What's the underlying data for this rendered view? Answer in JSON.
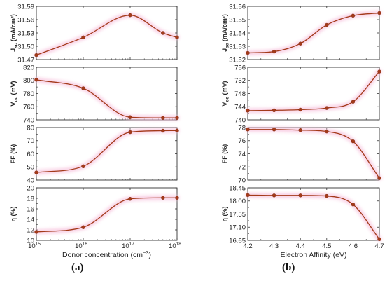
{
  "colors": {
    "line": "#a33a1a",
    "marker": "#a33a1a",
    "glow": "#f7c2dd",
    "axis": "#333333"
  },
  "panel_labels": {
    "a": "(a)",
    "b": "(b)"
  },
  "chart_data": [
    {
      "id": "a-jsc",
      "type": "line",
      "xscale": "log",
      "x": [
        1000000000000000.0,
        1e+16,
        1e+17,
        5e+17,
        1e+18
      ],
      "y": [
        31.48,
        31.52,
        31.57,
        31.53,
        31.52
      ],
      "ylim": [
        31.47,
        31.59
      ],
      "yticks": [
        31.47,
        31.5,
        31.53,
        31.56,
        31.59
      ],
      "ytick_labels": [
        "31.47",
        "31.50",
        "31.53",
        "31.56",
        "31.59"
      ],
      "ylabel_main": "J",
      "ylabel_sub": "sc",
      "ylabel_rest": " (mA/cm²)",
      "xlim": [
        1000000000000000.0,
        1e+18
      ]
    },
    {
      "id": "a-voc",
      "type": "line",
      "xscale": "log",
      "x": [
        1000000000000000.0,
        1e+16,
        1e+17,
        5e+17,
        1e+18
      ],
      "y": [
        801,
        788,
        744,
        743,
        743
      ],
      "ylim": [
        740,
        820
      ],
      "yticks": [
        740,
        760,
        780,
        800,
        820
      ],
      "ytick_labels": [
        "740",
        "760",
        "780",
        "800",
        "820"
      ],
      "ylabel_main": "V",
      "ylabel_sub": "oc",
      "ylabel_rest": " (mV)",
      "xlim": [
        1000000000000000.0,
        1e+18
      ]
    },
    {
      "id": "a-ff",
      "type": "line",
      "xscale": "log",
      "x": [
        1000000000000000.0,
        1e+16,
        1e+17,
        5e+17,
        1e+18
      ],
      "y": [
        45.8,
        50.5,
        76.5,
        77.6,
        77.7
      ],
      "ylim": [
        40,
        80
      ],
      "yticks": [
        40,
        50,
        60,
        70,
        80
      ],
      "ytick_labels": [
        "40",
        "50",
        "60",
        "70",
        "80"
      ],
      "ylabel_main": "FF (%)",
      "ylabel_sub": "",
      "ylabel_rest": "",
      "xlim": [
        1000000000000000.0,
        1e+18
      ]
    },
    {
      "id": "a-eta",
      "type": "line",
      "xscale": "log",
      "x": [
        1000000000000000.0,
        1e+16,
        1e+17,
        5e+17,
        1e+18
      ],
      "y": [
        11.6,
        12.5,
        17.9,
        18.1,
        18.1
      ],
      "ylim": [
        10,
        20
      ],
      "yticks": [
        10,
        12,
        14,
        16,
        18,
        20
      ],
      "ytick_labels": [
        "10",
        "12",
        "14",
        "16",
        "18",
        "20"
      ],
      "ylabel_main": "η (%)",
      "ylabel_sub": "",
      "ylabel_rest": "",
      "xlim": [
        1000000000000000.0,
        1e+18
      ],
      "xticks": [
        1000000000000000.0,
        1e+16,
        1e+17,
        1e+18
      ],
      "xtick_base": [
        "10",
        "10",
        "10",
        "10"
      ],
      "xtick_exp": [
        "15",
        "16",
        "17",
        "18"
      ],
      "xlabel_main": "Donor concentration (cm",
      "xlabel_sup": "−3",
      "xlabel_end": ")"
    },
    {
      "id": "b-jsc",
      "type": "line",
      "xscale": "linear",
      "x": [
        4.2,
        4.3,
        4.4,
        4.5,
        4.6,
        4.7
      ],
      "y": [
        31.525,
        31.526,
        31.532,
        31.546,
        31.553,
        31.555
      ],
      "ylim": [
        31.52,
        31.56
      ],
      "yticks": [
        31.52,
        31.53,
        31.54,
        31.55,
        31.56
      ],
      "ytick_labels": [
        "31.52",
        "31.53",
        "31.54",
        "31.55",
        "31.56"
      ],
      "ylabel_main": "J",
      "ylabel_sub": "sc",
      "ylabel_rest": " (mA/cm²)",
      "xlim": [
        4.2,
        4.7
      ]
    },
    {
      "id": "b-voc",
      "type": "line",
      "xscale": "linear",
      "x": [
        4.2,
        4.3,
        4.4,
        4.5,
        4.6,
        4.7
      ],
      "y": [
        742.8,
        742.9,
        743.1,
        743.6,
        745.5,
        754.7
      ],
      "ylim": [
        740,
        756
      ],
      "yticks": [
        740,
        744,
        748,
        752,
        756
      ],
      "ytick_labels": [
        "740",
        "744",
        "748",
        "752",
        "756"
      ],
      "ylabel_main": "V",
      "ylabel_sub": "oc",
      "ylabel_rest": " (mV)",
      "xlim": [
        4.2,
        4.7
      ]
    },
    {
      "id": "b-ff",
      "type": "line",
      "xscale": "linear",
      "x": [
        4.2,
        4.3,
        4.4,
        4.5,
        4.6,
        4.7
      ],
      "y": [
        77.7,
        77.7,
        77.6,
        77.4,
        75.9,
        70.3
      ],
      "ylim": [
        70,
        78
      ],
      "yticks": [
        70,
        72,
        74,
        76,
        78
      ],
      "ytick_labels": [
        "70",
        "72",
        "74",
        "76",
        "78"
      ],
      "ylabel_main": "FF (%)",
      "ylabel_sub": "",
      "ylabel_rest": "",
      "xlim": [
        4.2,
        4.7
      ]
    },
    {
      "id": "b-eta",
      "type": "line",
      "xscale": "linear",
      "x": [
        4.2,
        4.3,
        4.4,
        4.5,
        4.6,
        4.7
      ],
      "y": [
        18.2,
        18.19,
        18.19,
        18.17,
        17.88,
        16.69
      ],
      "ylim": [
        16.65,
        18.45
      ],
      "yticks": [
        16.65,
        17.1,
        17.55,
        18.0,
        18.45
      ],
      "ytick_labels": [
        "16.65",
        "17.10",
        "17.55",
        "18.00",
        "18.45"
      ],
      "ylabel_main": "η (%)",
      "ylabel_sub": "",
      "ylabel_rest": "",
      "xlim": [
        4.2,
        4.7
      ],
      "xticks": [
        4.2,
        4.3,
        4.4,
        4.5,
        4.6,
        4.7
      ],
      "xtick_labels": [
        "4.2",
        "4.3",
        "4.4",
        "4.5",
        "4.6",
        "4.7"
      ],
      "xlabel_main": "Electron Affinity (eV)",
      "xlabel_sup": "",
      "xlabel_end": ""
    }
  ]
}
